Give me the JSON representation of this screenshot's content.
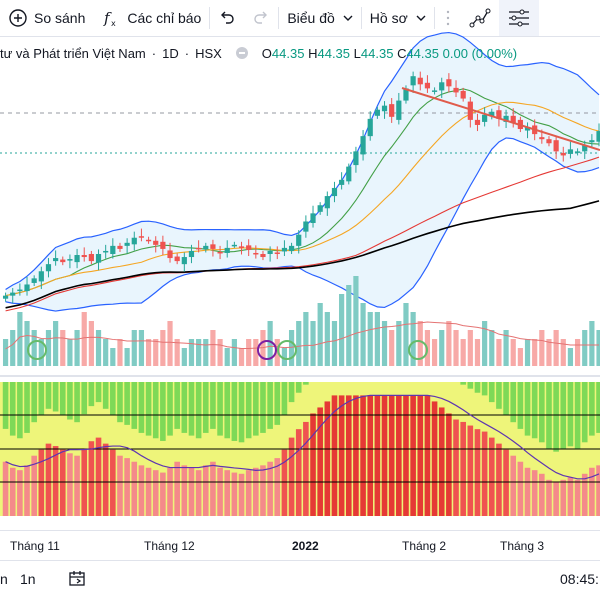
{
  "toolbar": {
    "compare_label": "So sánh",
    "indicators_label": "Các chỉ báo",
    "chart_type_label": "Biểu đồ",
    "profile_label": "Hồ sơ"
  },
  "legend": {
    "symbol_title": "tư và Phát triển Việt Nam",
    "interval": "1D",
    "exchange": "HSX",
    "open_letter": "O",
    "open": "44.35",
    "high_letter": "H",
    "high": "44.35",
    "low_letter": "L",
    "low": "44.35",
    "close_letter": "C",
    "close": "44.35",
    "change": "0.00",
    "change_pct": "(0.00%)"
  },
  "xaxis": {
    "labels": [
      "Tháng 11",
      "Tháng 12",
      "2022",
      "Tháng 2",
      "Tháng 3"
    ]
  },
  "bottom": {
    "range_left": "n",
    "range_1n": "1n",
    "time": "08:45:"
  },
  "colors": {
    "up": "#26a69a",
    "down": "#ef5350",
    "bollinger": "#2962ff",
    "fill": "#e3f2fd",
    "ma_green": "#43a047",
    "ma_orange": "#f5a623",
    "ma_red": "#e53935",
    "ma_black": "#000000",
    "trendline": "#e05b4b"
  },
  "chart_data": {
    "type": "candlestick",
    "range_y": [
      22,
      47
    ],
    "closes": [
      24.2,
      24.5,
      24.8,
      25.3,
      25.9,
      26.6,
      27.3,
      27.9,
      27.5,
      27.8,
      28.2,
      28.0,
      27.6,
      28.3,
      28.6,
      29.1,
      28.8,
      29.4,
      29.9,
      30.0,
      29.6,
      29.2,
      28.8,
      27.9,
      27.6,
      28.0,
      28.6,
      28.9,
      29.1,
      28.8,
      28.4,
      28.9,
      29.2,
      29.0,
      28.7,
      28.3,
      28.0,
      28.6,
      28.4,
      28.9,
      29.1,
      30.2,
      31.5,
      32.3,
      33.1,
      34.0,
      34.8,
      35.6,
      36.9,
      38.4,
      39.9,
      41.6,
      42.5,
      42.9,
      41.8,
      43.4,
      44.6,
      45.8,
      45.0,
      44.6,
      44.4,
      45.2,
      44.8,
      44.2,
      43.6,
      41.5,
      41.0,
      42.0,
      42.3,
      41.6,
      41.9,
      41.2,
      40.6,
      40.8,
      40.1,
      39.6,
      39.2,
      38.4,
      38.0,
      38.6,
      38.4,
      39.0,
      39.5,
      40.4
    ],
    "volume": [
      3,
      4,
      6,
      5,
      4,
      3,
      4,
      5,
      4,
      3,
      4,
      6,
      5,
      4,
      3,
      2,
      3,
      2,
      4,
      4,
      3,
      3,
      4,
      5,
      3,
      2,
      3,
      3,
      3,
      4,
      3,
      2,
      3,
      2,
      3,
      3,
      4,
      5,
      3,
      2,
      4,
      5,
      6,
      5,
      7,
      6,
      5,
      8,
      9,
      10,
      7,
      6,
      6,
      5,
      4,
      5,
      7,
      6,
      5,
      4,
      3,
      4,
      5,
      4,
      3,
      4,
      3,
      5,
      4,
      3,
      4,
      3,
      2,
      3,
      3,
      4,
      3,
      4,
      3,
      2,
      3,
      4,
      5,
      4
    ],
    "oscillator": [
      45,
      40,
      38,
      42,
      50,
      55,
      60,
      58,
      55,
      52,
      50,
      56,
      62,
      65,
      60,
      55,
      50,
      48,
      45,
      42,
      40,
      38,
      36,
      40,
      45,
      42,
      40,
      38,
      42,
      45,
      40,
      38,
      36,
      35,
      38,
      40,
      42,
      45,
      48,
      55,
      65,
      72,
      78,
      85,
      90,
      95,
      100,
      100,
      100,
      100,
      100,
      100,
      100,
      100,
      100,
      100,
      100,
      100,
      100,
      100,
      95,
      90,
      85,
      80,
      78,
      75,
      72,
      70,
      65,
      60,
      55,
      50,
      45,
      40,
      38,
      35,
      30,
      28,
      30,
      32,
      30,
      35,
      40,
      42
    ]
  }
}
